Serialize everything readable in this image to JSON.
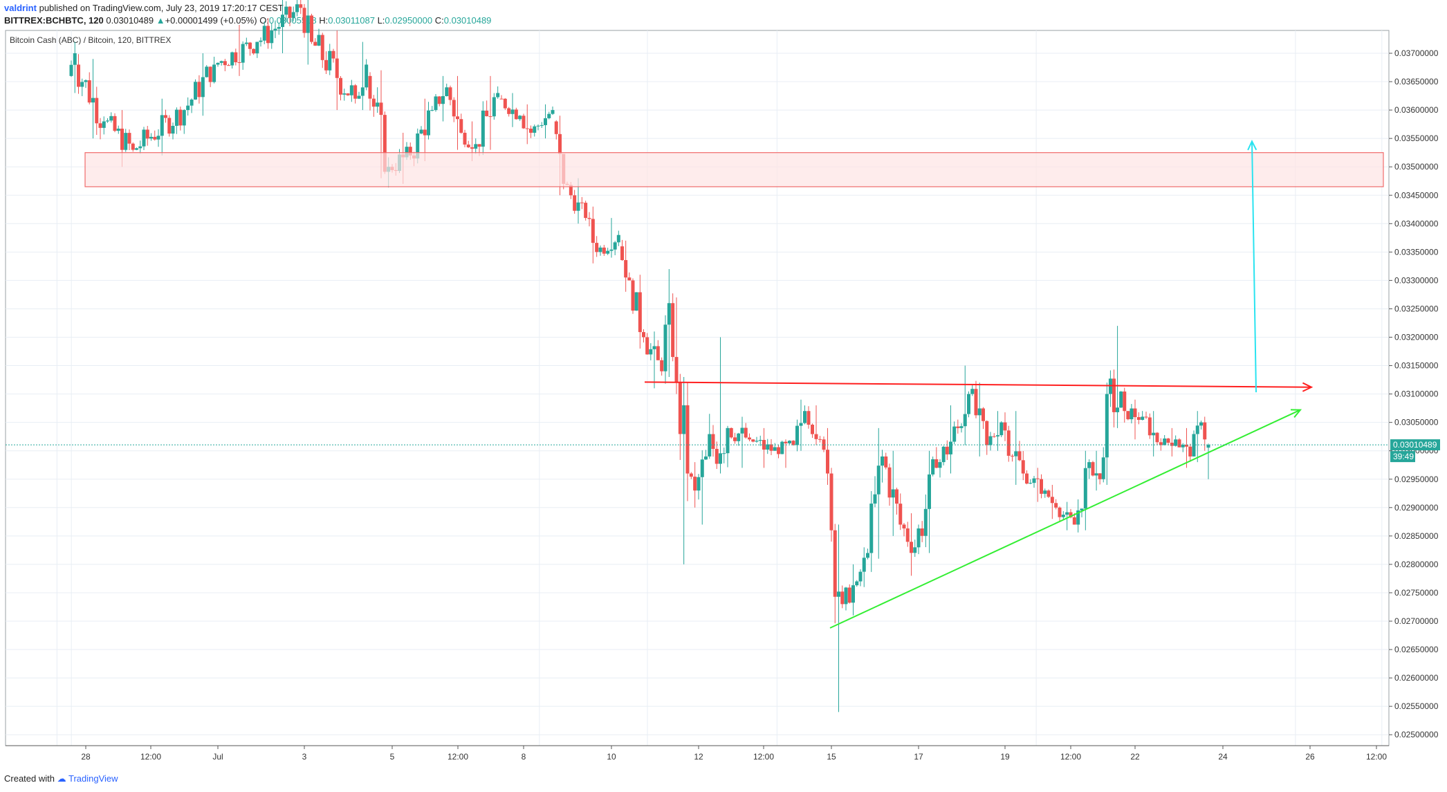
{
  "header": {
    "author": "valdrint",
    "published": "published on TradingView.com, July 23, 2019 17:20:17 CEST"
  },
  "quote": {
    "symbol": "BITTREX:BCHBTC, 120",
    "last": "0.03010489",
    "change": "+0.00001499 (+0.05%)",
    "open_label": "O:",
    "open": "0.03005518",
    "high_label": "H:",
    "high": "0.03011087",
    "low_label": "L:",
    "low": "0.02950000",
    "close_label": "C:",
    "close": "0.03010489"
  },
  "footer": {
    "created_with": "Created with",
    "brand": "TradingView"
  },
  "colors": {
    "up": "#26a69a",
    "down": "#ef5350",
    "grid": "#e8eef4",
    "resistance_line": "#ff1f1f",
    "support_line": "#33ee33",
    "target_arrow": "#29e3f0",
    "zone_fill": "#fde4e4",
    "zone_border": "#f06a6a",
    "price_line": "#26a69a"
  },
  "chart_data": {
    "type": "candlestick",
    "title": "Bitcoin Cash (ABC) / Bitcoin, 120, BITTREX",
    "price_tag": "0.03010489",
    "countdown": "39:49",
    "ylim": [
      0.0248,
      0.038
    ],
    "y_ticks": [
      "0.03700000",
      "0.03650000",
      "0.03600000",
      "0.03550000",
      "0.03500000",
      "0.03450000",
      "0.03400000",
      "0.03350000",
      "0.03300000",
      "0.03250000",
      "0.03200000",
      "0.03150000",
      "0.03100000",
      "0.03050000",
      "0.03000000",
      "0.02950000",
      "0.02900000",
      "0.02850000",
      "0.02800000",
      "0.02750000",
      "0.02700000",
      "0.02650000",
      "0.02600000",
      "0.02550000",
      "0.02500000"
    ],
    "x_ticks": [
      "28",
      "12:00",
      "Jul",
      "3",
      "5",
      "12:00",
      "8",
      "10",
      "12",
      "12:00",
      "15",
      "17",
      "19",
      "12:00",
      "22",
      "24",
      "26",
      "12:00"
    ],
    "x_range": [
      "2019-06-27T16:00",
      "2019-06-27T20:00",
      "2019-07-03T06:00",
      "2019-07-04T12:00",
      "2019-07-06T00:00",
      "2019-07-09T00:00",
      "2019-07-12T00:00",
      "2019-07-13T00:00",
      "2019-07-14T20:00",
      "2019-07-15T16:00",
      "2019-07-17T00:00",
      "2019-07-18T06:00",
      "2019-07-20T12:00",
      "2019-07-21T10:00",
      "2019-07-23T16:00",
      "2019-07-26T16:00"
    ],
    "anchors": [
      {
        "t": "2019-06-27T16:00",
        "o": 0.0366,
        "h": 0.0372,
        "l": 0.0363,
        "c": 0.037
      },
      {
        "t": "2019-06-27T20:00",
        "o": 0.0368,
        "h": 0.0369,
        "l": 0.0355,
        "c": 0.0358
      },
      {
        "t": "2019-06-28T12:00",
        "o": 0.0358,
        "h": 0.036,
        "l": 0.035,
        "c": 0.0353
      },
      {
        "t": "2019-06-29T04:00",
        "o": 0.0353,
        "h": 0.0362,
        "l": 0.0352,
        "c": 0.036
      },
      {
        "t": "2019-06-30T08:00",
        "o": 0.036,
        "h": 0.037,
        "l": 0.0359,
        "c": 0.0368
      },
      {
        "t": "2019-07-01T00:00",
        "o": 0.0368,
        "h": 0.0375,
        "l": 0.0366,
        "c": 0.0372
      },
      {
        "t": "2019-07-02T00:00",
        "o": 0.0372,
        "h": 0.038,
        "l": 0.037,
        "c": 0.0378
      },
      {
        "t": "2019-07-03T00:00",
        "o": 0.0378,
        "h": 0.038,
        "l": 0.0368,
        "c": 0.0372
      },
      {
        "t": "2019-07-03T06:00",
        "o": 0.0372,
        "h": 0.0374,
        "l": 0.036,
        "c": 0.0362
      },
      {
        "t": "2019-07-04T06:00",
        "o": 0.0362,
        "h": 0.0372,
        "l": 0.036,
        "c": 0.0368
      },
      {
        "t": "2019-07-04T12:00",
        "o": 0.0366,
        "h": 0.0367,
        "l": 0.0348,
        "c": 0.035
      },
      {
        "t": "2019-07-05T00:00",
        "o": 0.035,
        "h": 0.0356,
        "l": 0.0347,
        "c": 0.0352
      },
      {
        "t": "2019-07-05T12:00",
        "o": 0.0352,
        "h": 0.0362,
        "l": 0.0351,
        "c": 0.036
      },
      {
        "t": "2019-07-06T00:00",
        "o": 0.036,
        "h": 0.0366,
        "l": 0.0358,
        "c": 0.0364
      },
      {
        "t": "2019-07-06T08:00",
        "o": 0.0364,
        "h": 0.0366,
        "l": 0.0353,
        "c": 0.0356
      },
      {
        "t": "2019-07-06T16:00",
        "o": 0.0356,
        "h": 0.0358,
        "l": 0.0351,
        "c": 0.0354
      },
      {
        "t": "2019-07-07T00:00",
        "o": 0.0354,
        "h": 0.0366,
        "l": 0.0353,
        "c": 0.0363
      },
      {
        "t": "2019-07-07T12:00",
        "o": 0.0362,
        "h": 0.0363,
        "l": 0.0357,
        "c": 0.0359
      },
      {
        "t": "2019-07-08T00:00",
        "o": 0.0359,
        "h": 0.0361,
        "l": 0.0354,
        "c": 0.0356
      },
      {
        "t": "2019-07-08T06:00",
        "o": 0.0356,
        "h": 0.0361,
        "l": 0.0355,
        "c": 0.036
      },
      {
        "t": "2019-07-08T18:00",
        "o": 0.0358,
        "h": 0.0359,
        "l": 0.0345,
        "c": 0.0347
      },
      {
        "t": "2019-07-09T00:00",
        "o": 0.0347,
        "h": 0.0348,
        "l": 0.034,
        "c": 0.0341
      },
      {
        "t": "2019-07-09T12:00",
        "o": 0.0341,
        "h": 0.0343,
        "l": 0.0333,
        "c": 0.0335
      },
      {
        "t": "2019-07-09T18:00",
        "o": 0.0335,
        "h": 0.0341,
        "l": 0.0334,
        "c": 0.0338
      },
      {
        "t": "2019-07-10T06:00",
        "o": 0.0336,
        "h": 0.0337,
        "l": 0.0328,
        "c": 0.033
      },
      {
        "t": "2019-07-10T12:00",
        "o": 0.033,
        "h": 0.0331,
        "l": 0.0318,
        "c": 0.032
      },
      {
        "t": "2019-07-10T20:00",
        "o": 0.032,
        "h": 0.0321,
        "l": 0.0311,
        "c": 0.0314
      },
      {
        "t": "2019-07-11T06:00",
        "o": 0.0314,
        "h": 0.0332,
        "l": 0.0313,
        "c": 0.0326
      },
      {
        "t": "2019-07-11T10:00",
        "o": 0.0326,
        "h": 0.0327,
        "l": 0.031,
        "c": 0.0312
      },
      {
        "t": "2019-07-11T14:00",
        "o": 0.0312,
        "h": 0.0313,
        "l": 0.028,
        "c": 0.0296
      },
      {
        "t": "2019-07-11T20:00",
        "o": 0.0296,
        "h": 0.0298,
        "l": 0.029,
        "c": 0.0293
      },
      {
        "t": "2019-07-12T00:00",
        "o": 0.0293,
        "h": 0.03,
        "l": 0.0287,
        "c": 0.0299
      },
      {
        "t": "2019-07-12T06:00",
        "o": 0.0299,
        "h": 0.032,
        "l": 0.0296,
        "c": 0.0304
      },
      {
        "t": "2019-07-12T18:00",
        "o": 0.0304,
        "h": 0.0306,
        "l": 0.0297,
        "c": 0.0302
      },
      {
        "t": "2019-07-13T06:00",
        "o": 0.0302,
        "h": 0.0304,
        "l": 0.0297,
        "c": 0.03
      },
      {
        "t": "2019-07-13T18:00",
        "o": 0.03,
        "h": 0.0302,
        "l": 0.0297,
        "c": 0.0301
      },
      {
        "t": "2019-07-14T06:00",
        "o": 0.0301,
        "h": 0.0309,
        "l": 0.03,
        "c": 0.0307
      },
      {
        "t": "2019-07-14T12:00",
        "o": 0.0307,
        "h": 0.0308,
        "l": 0.0301,
        "c": 0.0302
      },
      {
        "t": "2019-07-14T20:00",
        "o": 0.0302,
        "h": 0.0304,
        "l": 0.0294,
        "c": 0.0296
      },
      {
        "t": "2019-07-15T00:00",
        "o": 0.0296,
        "h": 0.0297,
        "l": 0.0284,
        "c": 0.0286
      },
      {
        "t": "2019-07-15T02:00",
        "o": 0.0286,
        "h": 0.0287,
        "l": 0.0254,
        "c": 0.0273
      },
      {
        "t": "2019-07-15T08:00",
        "o": 0.0273,
        "h": 0.028,
        "l": 0.0271,
        "c": 0.0277
      },
      {
        "t": "2019-07-15T16:00",
        "o": 0.0277,
        "h": 0.0283,
        "l": 0.0276,
        "c": 0.0282
      },
      {
        "t": "2019-07-15T22:00",
        "o": 0.0282,
        "h": 0.0304,
        "l": 0.0281,
        "c": 0.0299
      },
      {
        "t": "2019-07-16T06:00",
        "o": 0.0299,
        "h": 0.03,
        "l": 0.0285,
        "c": 0.0287
      },
      {
        "t": "2019-07-16T16:00",
        "o": 0.0287,
        "h": 0.0289,
        "l": 0.0278,
        "c": 0.0283
      },
      {
        "t": "2019-07-17T00:00",
        "o": 0.0283,
        "h": 0.03,
        "l": 0.0282,
        "c": 0.0297
      },
      {
        "t": "2019-07-17T12:00",
        "o": 0.0297,
        "h": 0.0308,
        "l": 0.0296,
        "c": 0.0304
      },
      {
        "t": "2019-07-18T00:00",
        "o": 0.0304,
        "h": 0.0315,
        "l": 0.0301,
        "c": 0.031
      },
      {
        "t": "2019-07-18T06:00",
        "o": 0.031,
        "h": 0.0312,
        "l": 0.0299,
        "c": 0.0301
      },
      {
        "t": "2019-07-18T16:00",
        "o": 0.0301,
        "h": 0.0307,
        "l": 0.03,
        "c": 0.0305
      },
      {
        "t": "2019-07-19T00:00",
        "o": 0.0305,
        "h": 0.0307,
        "l": 0.0294,
        "c": 0.0296
      },
      {
        "t": "2019-07-19T12:00",
        "o": 0.0296,
        "h": 0.0297,
        "l": 0.0291,
        "c": 0.0293
      },
      {
        "t": "2019-07-20T00:00",
        "o": 0.0293,
        "h": 0.0294,
        "l": 0.0288,
        "c": 0.029
      },
      {
        "t": "2019-07-20T06:00",
        "o": 0.029,
        "h": 0.0291,
        "l": 0.0286,
        "c": 0.0287
      },
      {
        "t": "2019-07-20T16:00",
        "o": 0.0287,
        "h": 0.03,
        "l": 0.0286,
        "c": 0.0298
      },
      {
        "t": "2019-07-21T00:00",
        "o": 0.0298,
        "h": 0.03,
        "l": 0.0293,
        "c": 0.0295
      },
      {
        "t": "2019-07-21T06:00",
        "o": 0.0295,
        "h": 0.0312,
        "l": 0.0294,
        "c": 0.031
      },
      {
        "t": "2019-07-21T10:00",
        "o": 0.031,
        "h": 0.0322,
        "l": 0.0304,
        "c": 0.0307
      },
      {
        "t": "2019-07-21T20:00",
        "o": 0.0307,
        "h": 0.0309,
        "l": 0.0302,
        "c": 0.0306
      },
      {
        "t": "2019-07-22T06:00",
        "o": 0.0306,
        "h": 0.0307,
        "l": 0.0299,
        "c": 0.0301
      },
      {
        "t": "2019-07-22T16:00",
        "o": 0.0301,
        "h": 0.0304,
        "l": 0.0299,
        "c": 0.0302
      },
      {
        "t": "2019-07-23T00:00",
        "o": 0.0302,
        "h": 0.0304,
        "l": 0.0297,
        "c": 0.0299
      },
      {
        "t": "2019-07-23T08:00",
        "o": 0.0299,
        "h": 0.0307,
        "l": 0.0298,
        "c": 0.0305
      },
      {
        "t": "2019-07-23T14:00",
        "o": 0.0305,
        "h": 0.0306,
        "l": 0.03,
        "c": 0.0302
      },
      {
        "t": "2019-07-23T16:00",
        "o": 0.03005518,
        "h": 0.03011087,
        "l": 0.0295,
        "c": 0.03010489
      }
    ],
    "annotations": {
      "resistance_zone": {
        "y_low": 0.03465,
        "y_high": 0.03525,
        "t_start": "2019-06-27T16:00",
        "t_end": "2019-07-26T16:00"
      },
      "resistance_line": {
        "t_start": "2019-07-11T06:00",
        "y_start": 0.03121,
        "t_end": "2019-07-25T14:00",
        "y_end": 0.03112
      },
      "support_line": {
        "t_start": "2019-07-15T00:00",
        "y_start": 0.02688,
        "t_end": "2019-07-25T12:00",
        "y_end": 0.03072
      },
      "target_arrow": {
        "t": "2019-07-24T16:00",
        "y_start": 0.03103,
        "y_end": 0.03545
      }
    }
  }
}
